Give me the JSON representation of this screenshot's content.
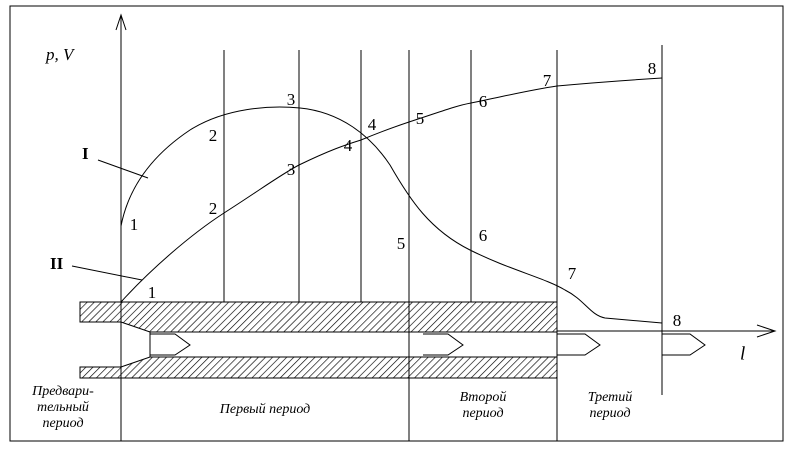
{
  "axes": {
    "y_label": "p, V",
    "x_label": "l"
  },
  "curves": [
    {
      "name": "I",
      "point_labels": [
        "1",
        "2",
        "3",
        "4",
        "5",
        "6",
        "7",
        "8"
      ]
    },
    {
      "name": "II",
      "point_labels": [
        "1",
        "2",
        "3",
        "4",
        "5",
        "6",
        "7",
        "8"
      ]
    }
  ],
  "periods": [
    {
      "lines": [
        "Предвари-",
        "тельный",
        "период"
      ]
    },
    {
      "lines": [
        "Первый период"
      ]
    },
    {
      "lines": [
        "Второй",
        "период"
      ]
    },
    {
      "lines": [
        "Третий",
        "период"
      ]
    }
  ]
}
